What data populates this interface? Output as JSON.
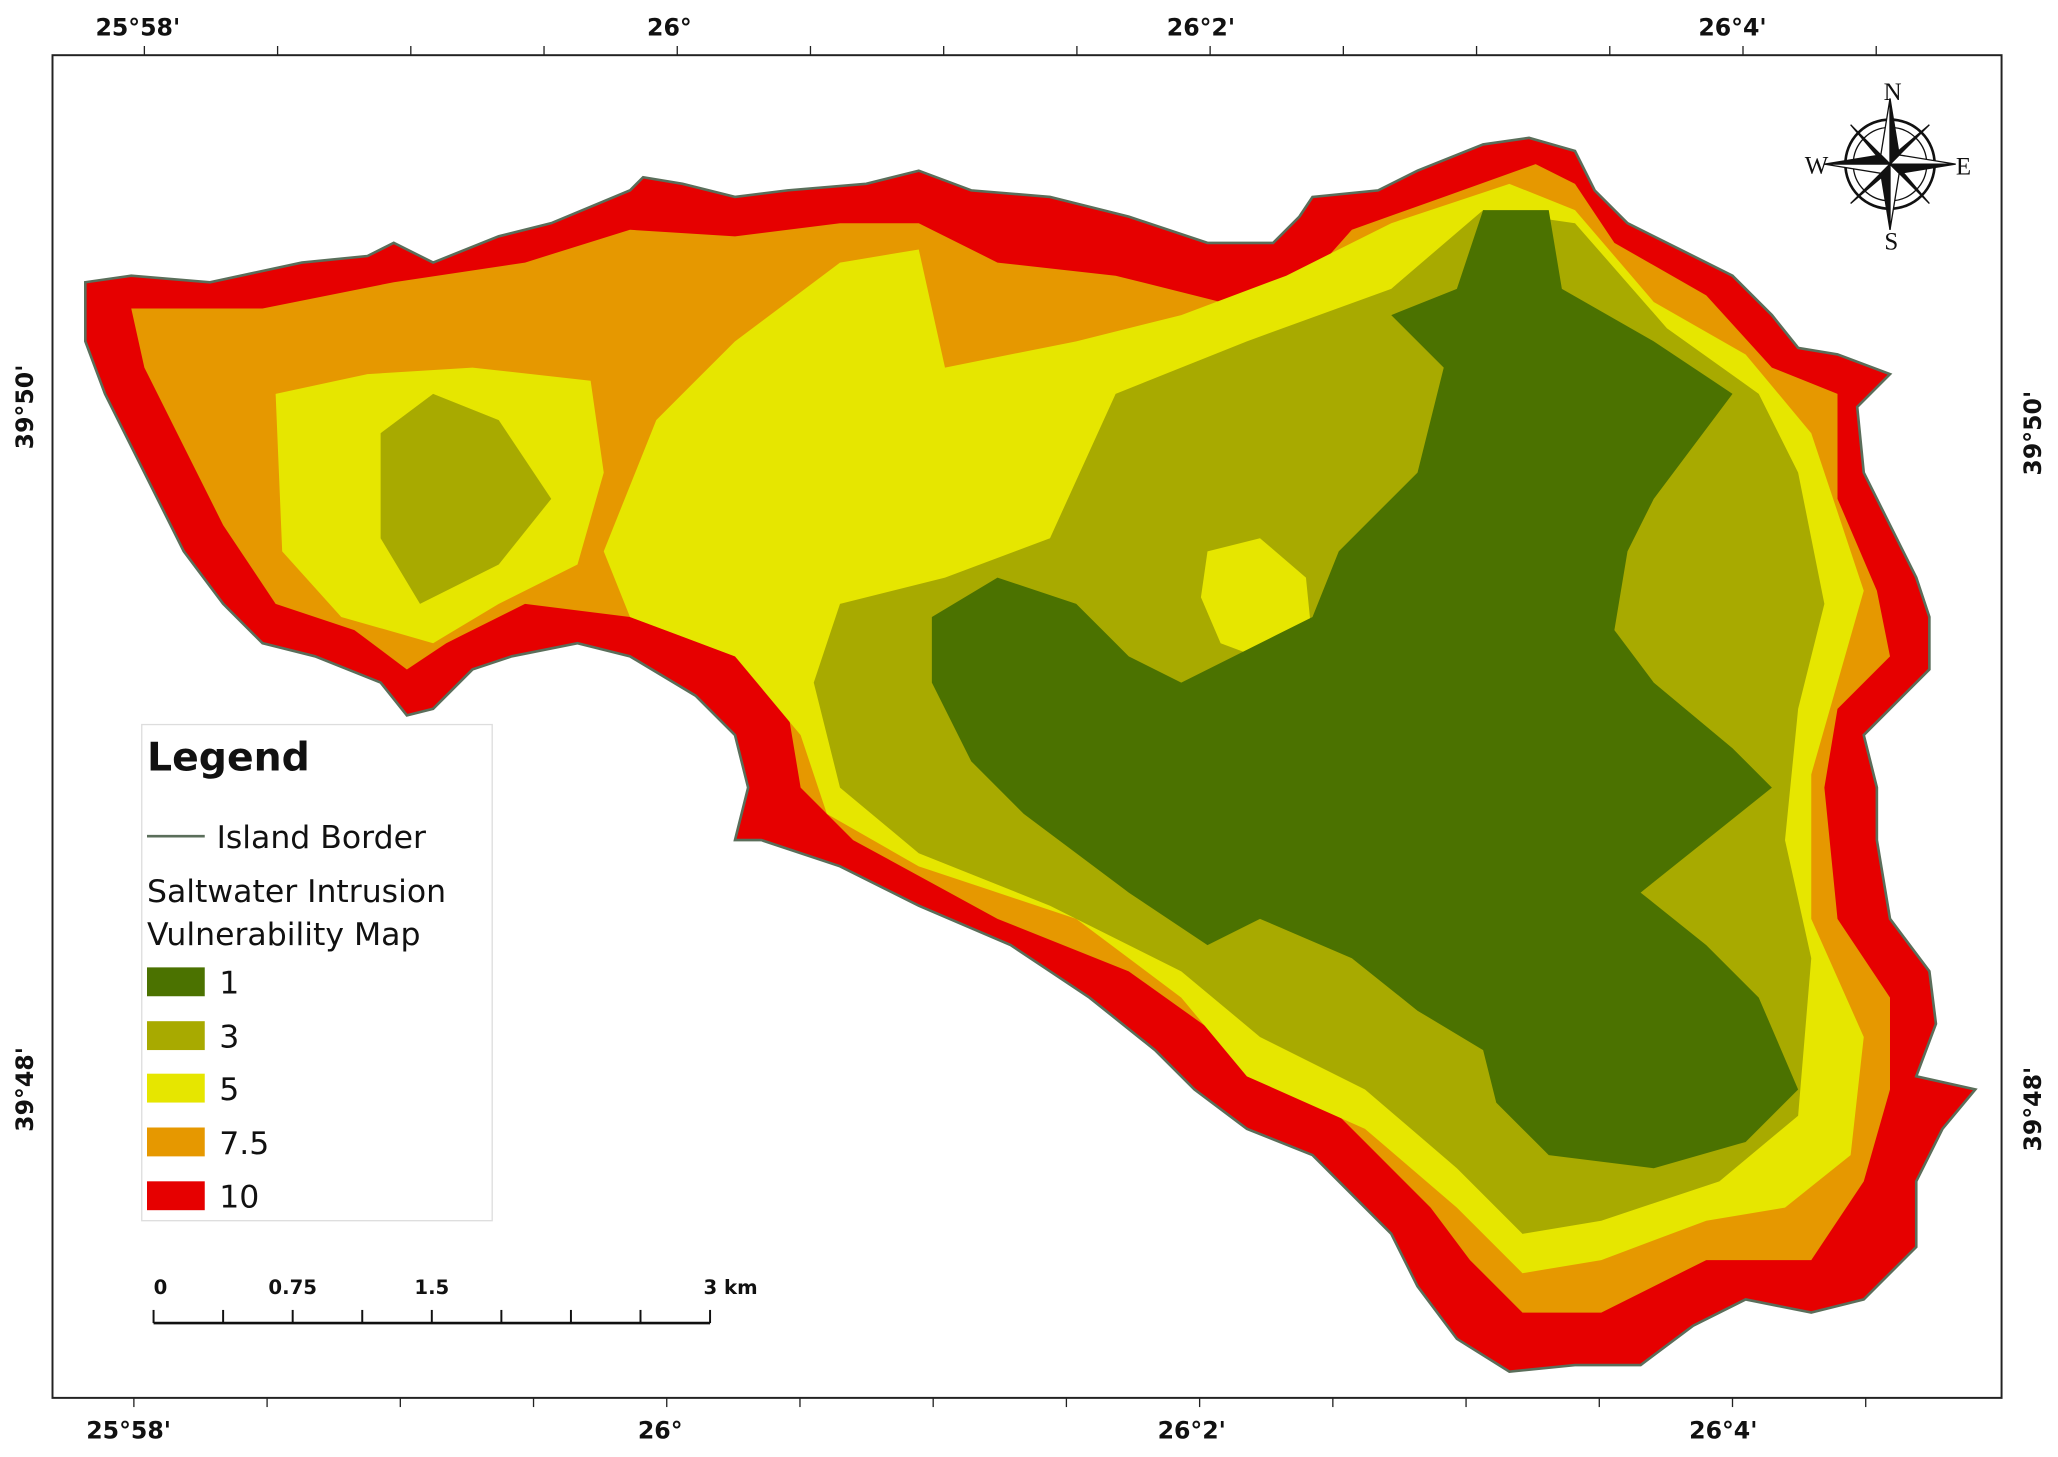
{
  "map": {
    "top_labels": [
      "25°58'",
      "26°",
      "26°2'",
      "26°4'"
    ],
    "bottom_labels": [
      "25°58'",
      "26°",
      "26°2'",
      "26°4'"
    ],
    "left_labels": [
      "39°50'",
      "39°48'"
    ],
    "right_labels": [
      "39°50'",
      "39°48'"
    ],
    "compass": {
      "north": "N",
      "east": "E",
      "south": "S",
      "west": "W"
    },
    "legend": {
      "title": "Legend",
      "border_label": "Island Border",
      "border_color": "#5a6e5a",
      "layer_title": [
        "Saltwater Intrusion",
        "Vulnerability Map"
      ],
      "classes": [
        {
          "label": "1",
          "color": "#4b7200"
        },
        {
          "label": "3",
          "color": "#a8aa00"
        },
        {
          "label": "5",
          "color": "#e6e600"
        },
        {
          "label": "7.5",
          "color": "#e69800"
        },
        {
          "label": "10",
          "color": "#e60000"
        }
      ]
    },
    "scale_bar": {
      "labels": [
        "0",
        "0.75",
        "1.5",
        "3 km"
      ]
    }
  }
}
